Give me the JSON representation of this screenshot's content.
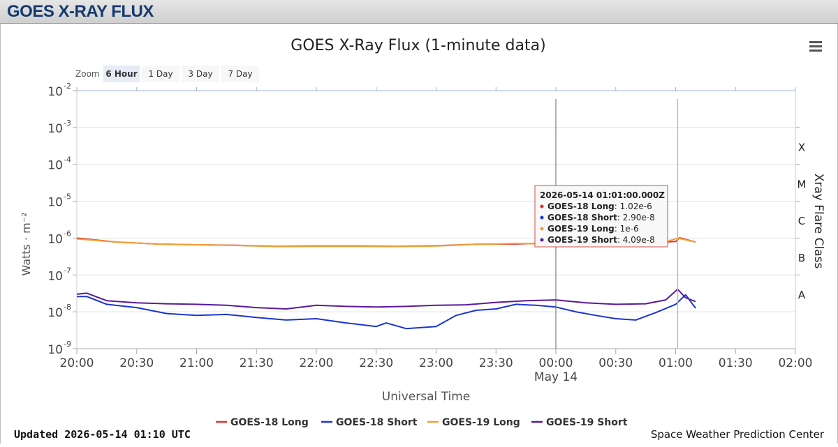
{
  "header": {
    "title": "GOES X-RAY FLUX"
  },
  "menu_icon": "hamburger-menu-icon",
  "zoom": {
    "label": "Zoom",
    "buttons": [
      "6 Hour",
      "1 Day",
      "3 Day",
      "7 Day"
    ],
    "selected": "6 Hour"
  },
  "footer": {
    "updated": "Updated 2026-05-14 01:10 UTC",
    "credit": "Space Weather Prediction Center"
  },
  "colors": {
    "goes18_long": "#e03030",
    "goes18_short": "#1a35d6",
    "goes19_long": "#f0a030",
    "goes19_short": "#5a1a9a"
  },
  "chart_data": {
    "type": "line",
    "title": "GOES X-Ray Flux (1-minute data)",
    "xlabel": "Universal Time",
    "ylabel": "Watts · m⁻²",
    "y2label": "Xray Flare Class",
    "y_scale": "log",
    "ylim": [
      1e-09,
      0.01
    ],
    "xlim": [
      "2026-05-13T20:00Z",
      "2026-05-14T02:00Z"
    ],
    "x_ticks": [
      "20:00",
      "20:30",
      "21:00",
      "21:30",
      "22:00",
      "22:30",
      "23:00",
      "23:30",
      "00:00",
      "00:30",
      "01:00",
      "01:30",
      "02:00"
    ],
    "x_date_label": "May 14",
    "y_ticks": [
      {
        "mant": "10",
        "exp": "-2",
        "value": 0.01
      },
      {
        "mant": "10",
        "exp": "-3",
        "value": 0.001
      },
      {
        "mant": "10",
        "exp": "-4",
        "value": 0.0001
      },
      {
        "mant": "10",
        "exp": "-5",
        "value": 1e-05
      },
      {
        "mant": "10",
        "exp": "-6",
        "value": 1e-06
      },
      {
        "mant": "10",
        "exp": "-7",
        "value": 1e-07
      },
      {
        "mant": "10",
        "exp": "-8",
        "value": 1e-08
      },
      {
        "mant": "10",
        "exp": "-9",
        "value": 1e-09
      }
    ],
    "flare_classes": [
      {
        "label": "X",
        "value": 0.0003
      },
      {
        "label": "M",
        "value": 3e-05
      },
      {
        "label": "C",
        "value": 3e-06
      },
      {
        "label": "B",
        "value": 3e-07
      },
      {
        "label": "A",
        "value": 3e-08
      }
    ],
    "grid": true,
    "legend": "bottom-center",
    "crosshair_time": "00:00",
    "cursor_time": "01:01",
    "tooltip": {
      "time": "2026-05-14 01:01:00.000Z",
      "rows": [
        {
          "name": "GOES-18 Long",
          "value": "1.02e-6"
        },
        {
          "name": "GOES-18 Short",
          "value": "2.90e-8"
        },
        {
          "name": "GOES-19 Long",
          "value": "1e-6"
        },
        {
          "name": "GOES-19 Short",
          "value": "4.09e-8"
        }
      ]
    },
    "series": [
      {
        "name": "GOES-18 Long",
        "x": [
          "20:00",
          "20:20",
          "20:40",
          "21:00",
          "21:20",
          "21:40",
          "22:00",
          "22:20",
          "22:40",
          "23:00",
          "23:20",
          "23:40",
          "00:00",
          "00:20",
          "00:40",
          "01:00",
          "01:02",
          "01:10"
        ],
        "values": [
          1e-06,
          7.8e-07,
          6.9e-07,
          6.6e-07,
          6.4e-07,
          6e-07,
          6.1e-07,
          6.1e-07,
          6e-07,
          6.2e-07,
          6.8e-07,
          6.9e-07,
          7.4e-07,
          7e-07,
          7.1e-07,
          8.1e-07,
          1.02e-06,
          7.8e-07
        ]
      },
      {
        "name": "GOES-18 Short",
        "x": [
          "20:00",
          "20:05",
          "20:15",
          "20:30",
          "20:45",
          "21:00",
          "21:15",
          "21:30",
          "21:45",
          "22:00",
          "22:15",
          "22:30",
          "22:35",
          "22:45",
          "23:00",
          "23:10",
          "23:20",
          "23:30",
          "23:40",
          "23:50",
          "00:00",
          "00:10",
          "00:20",
          "00:30",
          "00:40",
          "00:50",
          "01:00",
          "01:05",
          "01:10"
        ],
        "values": [
          2.6e-08,
          2.6e-08,
          1.6e-08,
          1.3e-08,
          9e-09,
          8e-09,
          8.5e-09,
          7e-09,
          6e-09,
          6.5e-09,
          5e-09,
          4e-09,
          5e-09,
          3.5e-09,
          4e-09,
          8e-09,
          1.1e-08,
          1.2e-08,
          1.6e-08,
          1.5e-08,
          1.35e-08,
          1e-08,
          8e-09,
          6.5e-09,
          6e-09,
          9.5e-09,
          1.6e-08,
          2.9e-08,
          1.25e-08
        ]
      },
      {
        "name": "GOES-19 Long",
        "x": [
          "20:00",
          "20:20",
          "20:40",
          "21:00",
          "21:20",
          "21:40",
          "22:00",
          "22:20",
          "22:40",
          "23:00",
          "23:20",
          "23:30",
          "23:40",
          "23:50",
          "00:00",
          "00:20",
          "00:40",
          "00:55",
          "01:01",
          "01:10"
        ],
        "values": [
          9.5e-07,
          7.8e-07,
          6.9e-07,
          6.6e-07,
          6.3e-07,
          5.9e-07,
          6e-07,
          6e-07,
          5.9e-07,
          6.1e-07,
          6.8e-07,
          6.9e-07,
          7.2e-07,
          7e-07,
          7.4e-07,
          7e-07,
          7.1e-07,
          7.9e-07,
          1e-06,
          7.8e-07
        ]
      },
      {
        "name": "GOES-19 Short",
        "x": [
          "20:00",
          "20:05",
          "20:15",
          "20:30",
          "20:45",
          "21:00",
          "21:15",
          "21:30",
          "21:45",
          "22:00",
          "22:15",
          "22:30",
          "22:45",
          "23:00",
          "23:15",
          "23:30",
          "23:45",
          "00:00",
          "00:15",
          "00:30",
          "00:45",
          "00:55",
          "01:01",
          "01:05",
          "01:10"
        ],
        "values": [
          3e-08,
          3.2e-08,
          2e-08,
          1.75e-08,
          1.65e-08,
          1.6e-08,
          1.5e-08,
          1.3e-08,
          1.2e-08,
          1.5e-08,
          1.4e-08,
          1.35e-08,
          1.4e-08,
          1.5e-08,
          1.55e-08,
          1.8e-08,
          2e-08,
          2.1e-08,
          1.75e-08,
          1.6e-08,
          1.65e-08,
          2.1e-08,
          4.09e-08,
          2.4e-08,
          1.9e-08
        ]
      }
    ]
  }
}
